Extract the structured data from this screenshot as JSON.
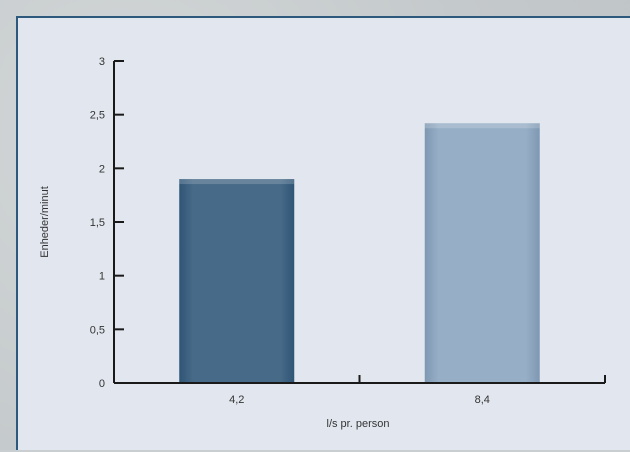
{
  "chart_data": {
    "type": "bar",
    "categories": [
      "4,2",
      "8,4"
    ],
    "values": [
      1.9,
      2.42
    ],
    "ylim": [
      0,
      3
    ],
    "yticks": [
      0,
      0.5,
      1,
      1.5,
      2,
      2.5,
      3
    ],
    "ytick_labels": [
      "0",
      "0,5",
      "1",
      "1,5",
      "2",
      "2,5",
      "3"
    ],
    "xlabel": "l/s pr. person",
    "ylabel": "Enheder/minut",
    "grid": false,
    "colors": [
      "#476a88",
      "#96aec6"
    ]
  }
}
